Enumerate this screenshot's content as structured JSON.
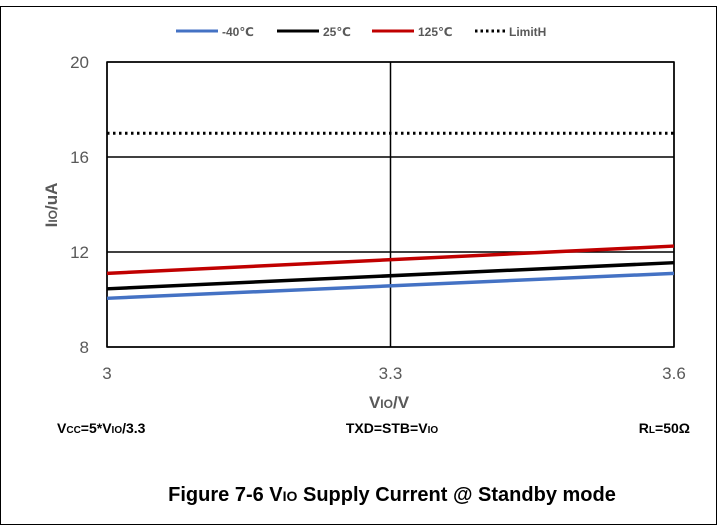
{
  "chart_data": {
    "type": "line",
    "title": "",
    "xlabel": "VIO/V",
    "ylabel": "IIO/uA",
    "xlim": [
      3,
      3.6
    ],
    "ylim": [
      8,
      20
    ],
    "x_ticks": [
      "3",
      "3.3",
      "3.6"
    ],
    "y_ticks": [
      "8",
      "12",
      "16",
      "20"
    ],
    "grid": true,
    "legend_position": "top",
    "series": [
      {
        "name": "-40℃",
        "color": "#4472C4",
        "x": [
          3,
          3.6
        ],
        "y": [
          10.05,
          11.1
        ],
        "style": "solid"
      },
      {
        "name": "25℃",
        "color": "#000000",
        "x": [
          3,
          3.6
        ],
        "y": [
          10.45,
          11.55
        ],
        "style": "solid"
      },
      {
        "name": "125℃",
        "color": "#C00000",
        "x": [
          3,
          3.6
        ],
        "y": [
          11.1,
          12.25
        ],
        "style": "solid"
      },
      {
        "name": "LimitH",
        "color": "#000000",
        "x": [
          3,
          3.6
        ],
        "y": [
          17,
          17
        ],
        "style": "dotted"
      }
    ]
  },
  "conditions": {
    "vcc": "Vcc=5*VIO/3.3",
    "txd": "TXD=STB=VIO",
    "rl": "RL=50Ω"
  },
  "caption": {
    "prefix": "Figure 7-6 V",
    "sub": "IO",
    "suffix": " Supply Current @ Standby mode"
  }
}
